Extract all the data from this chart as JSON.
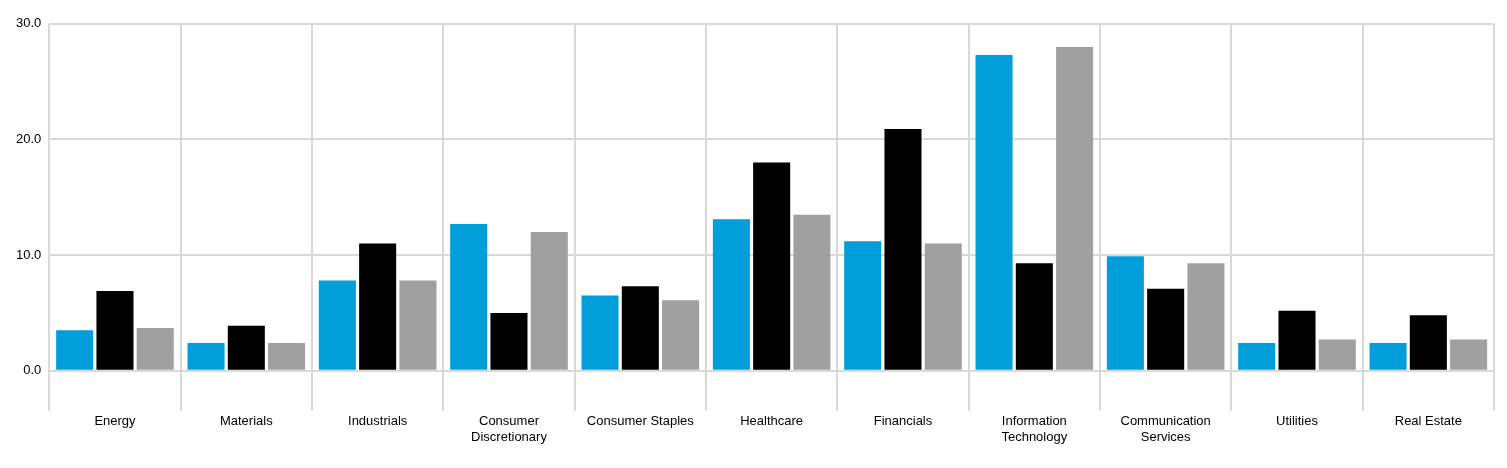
{
  "chart_data": {
    "type": "bar",
    "categories": [
      "Energy",
      "Materials",
      "Industrials",
      "Consumer Discretionary",
      "Consumer Staples",
      "Healthcare",
      "Financials",
      "Information Technology",
      "Communication Services",
      "Utilities",
      "Real Estate"
    ],
    "series": [
      {
        "color": "#009fdb",
        "values": [
          3.5,
          2.4,
          7.8,
          12.7,
          6.5,
          13.1,
          11.2,
          27.3,
          9.9,
          2.4,
          2.4
        ]
      },
      {
        "color": "#000000",
        "values": [
          6.9,
          3.9,
          11.0,
          5.0,
          7.3,
          18.0,
          20.9,
          9.3,
          7.1,
          5.2,
          4.8
        ]
      },
      {
        "color": "#a0a0a0",
        "values": [
          3.7,
          2.4,
          7.8,
          12.0,
          6.1,
          13.5,
          11.0,
          28.0,
          9.3,
          2.7,
          2.7
        ]
      }
    ],
    "ylim": [
      0,
      30
    ],
    "yticks": [
      {
        "value": 0,
        "label": "0.0"
      },
      {
        "value": 10,
        "label": "10.0"
      },
      {
        "value": 20,
        "label": "20.0"
      },
      {
        "value": 30,
        "label": "30.0"
      }
    ],
    "grid": true,
    "legend": false
  }
}
